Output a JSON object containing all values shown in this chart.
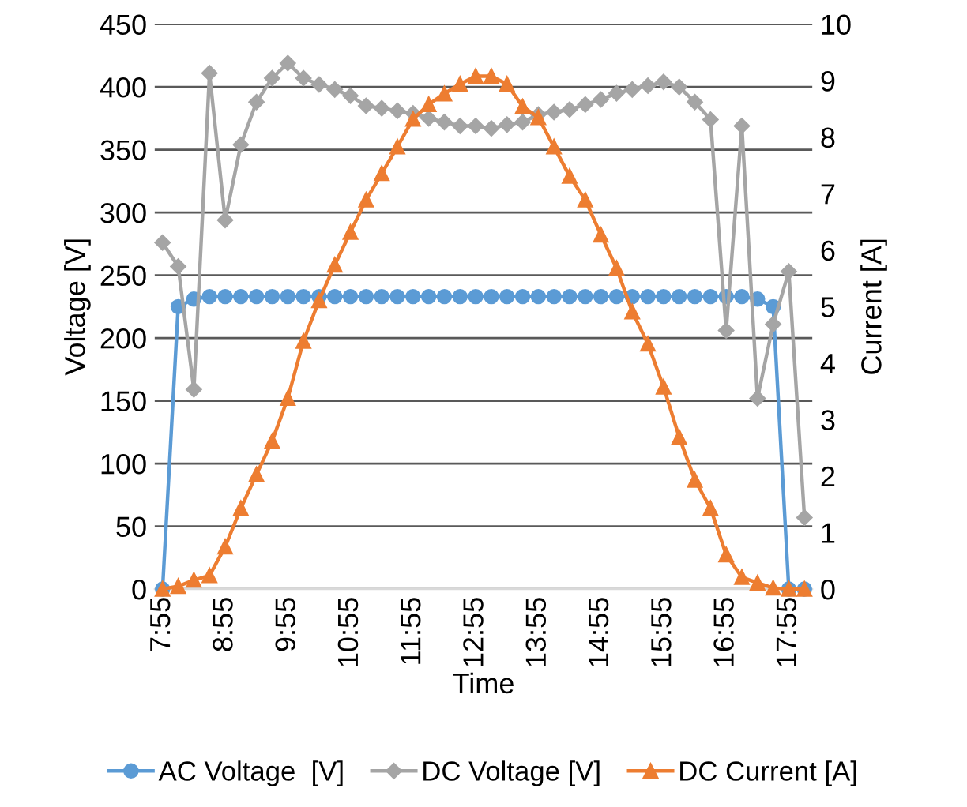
{
  "chart_data": {
    "type": "line",
    "xlabel": "Time",
    "ylabel": "Voltage [V]",
    "y2label": "Current [A]",
    "categories": [
      "7:55",
      null,
      null,
      null,
      "8:55",
      null,
      null,
      null,
      "9:55",
      null,
      null,
      null,
      "10:55",
      null,
      null,
      null,
      "11:55",
      null,
      null,
      null,
      "12:55",
      null,
      null,
      null,
      "13:55",
      null,
      null,
      null,
      "14:55",
      null,
      null,
      null,
      "15:55",
      null,
      null,
      null,
      "16:55",
      null,
      null,
      null,
      "17:55",
      null
    ],
    "ylim": [
      0,
      450
    ],
    "yticks": [
      0,
      50,
      100,
      150,
      200,
      250,
      300,
      350,
      400,
      450
    ],
    "y2lim": [
      0,
      10
    ],
    "y2ticks": [
      0,
      1,
      2,
      3,
      4,
      5,
      6,
      7,
      8,
      9,
      10
    ],
    "grid": "y",
    "legend": "bottom",
    "series": [
      {
        "name": "AC Voltage  [V]",
        "color": "#5b9bd5",
        "marker": "circle",
        "values": [
          0,
          225,
          231,
          233,
          233,
          233,
          233,
          233,
          233,
          233,
          233,
          233,
          233,
          233,
          233,
          233,
          233,
          233,
          233,
          233,
          233,
          233,
          233,
          233,
          233,
          233,
          233,
          233,
          233,
          233,
          233,
          233,
          233,
          233,
          233,
          233,
          233,
          233,
          231,
          225,
          0,
          0
        ]
      },
      {
        "name": "DC Voltage [V]",
        "color": "#a5a5a5",
        "marker": "diamond",
        "values": [
          276,
          257,
          159,
          411,
          294,
          354,
          388,
          407,
          419,
          407,
          402,
          398,
          393,
          385,
          383,
          381,
          379,
          375,
          372,
          369,
          369,
          367,
          370,
          372,
          378,
          380,
          382,
          386,
          390,
          395,
          398,
          401,
          404,
          400,
          388,
          374,
          206,
          369,
          152,
          211,
          253,
          57
        ]
      },
      {
        "name": "DC Current [A]",
        "color": "#ed7d31",
        "marker": "triangle",
        "axis": "y2",
        "values": [
          0,
          0.05,
          0.16,
          0.24,
          0.75,
          1.43,
          2.03,
          2.62,
          3.38,
          4.39,
          5.11,
          5.74,
          6.32,
          6.89,
          7.36,
          7.83,
          8.32,
          8.58,
          8.77,
          8.94,
          9.08,
          9.08,
          8.94,
          8.54,
          8.35,
          7.83,
          7.31,
          6.89,
          6.27,
          5.68,
          4.91,
          4.34,
          3.58,
          2.69,
          1.93,
          1.43,
          0.61,
          0.21,
          0.11,
          0.02,
          0,
          0
        ]
      }
    ]
  }
}
